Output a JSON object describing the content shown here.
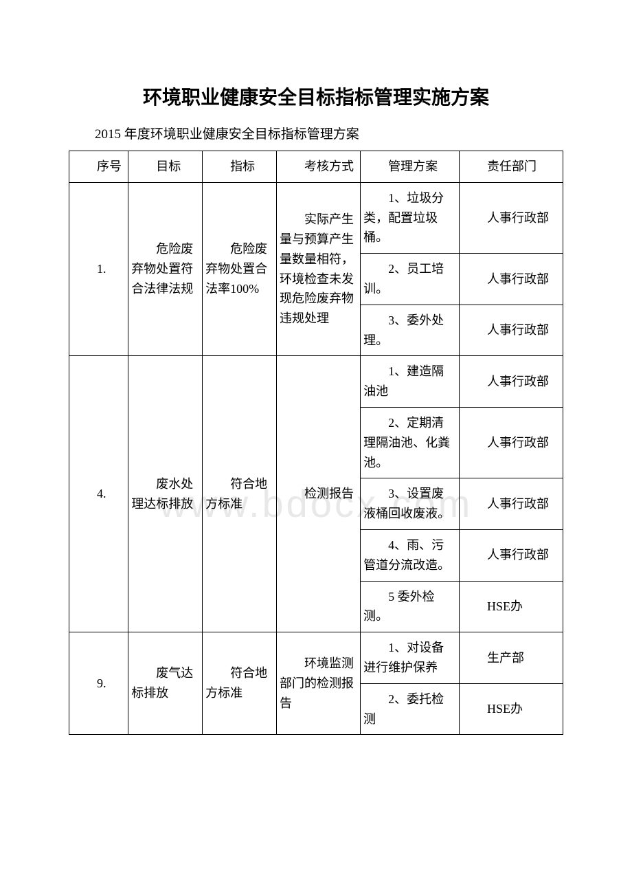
{
  "document": {
    "title": "环境职业健康安全目标指标管理实施方案",
    "subtitle": "2015 年度环境职业健康安全目标指标管理方案",
    "watermark": "www.bdocx.com"
  },
  "table": {
    "header": {
      "seq": "序号",
      "target": "目标",
      "indicator": "指标",
      "method": "考核方式",
      "plan": "管理方案",
      "dept": "责任部门"
    },
    "group1": {
      "seq": "1.",
      "target": "危险废弃物处置符合法律法规",
      "indicator": "危险废弃物处置合法率100%",
      "method": "实际产生量与预算产生量数量相符，环境检查未发现危险废弃物违规处理",
      "plan1": "1、垃圾分类，配置垃圾桶。",
      "dept1": "人事行政部",
      "plan2": "2、员工培训。",
      "dept2": "人事行政部",
      "plan3": "3、委外处理。",
      "dept3": "人事行政部"
    },
    "group2": {
      "seq": "4.",
      "target": "废水处理达标排放",
      "indicator": "符合地方标准",
      "method": "检测报告",
      "plan1": "1、建造隔油池",
      "dept1": "人事行政部",
      "plan2": "2、定期清理隔油池、化粪池。",
      "dept2": "人事行政部",
      "plan3": "3、设置废液桶回收废液。",
      "dept3": "人事行政部",
      "plan4": "4、雨、污管道分流改造。",
      "dept4": "人事行政部",
      "plan5": "5 委外检测。",
      "dept5": "HSE办"
    },
    "group3": {
      "seq": "9.",
      "target": "废气达标排放",
      "indicator": "符合地方标准",
      "method": "环境监测部门的检测报告",
      "plan1": "1、对设备进行维护保养",
      "dept1": "生产部",
      "plan2": "2、委托检测",
      "dept2": "HSE办"
    }
  },
  "styling": {
    "background_color": "#ffffff",
    "border_color": "#000000",
    "text_color": "#000000",
    "watermark_color": "#e8e8e8",
    "title_fontsize": 28,
    "subtitle_fontsize": 19,
    "body_fontsize": 18,
    "watermark_fontsize": 56
  }
}
